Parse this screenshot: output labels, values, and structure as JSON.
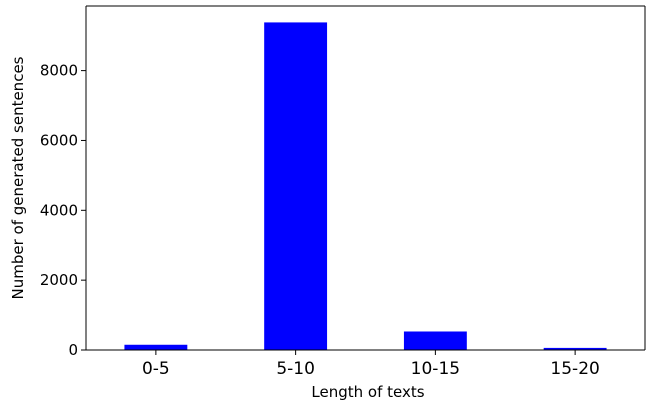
{
  "chart_data": {
    "type": "bar",
    "categories": [
      "0-5",
      "5-10",
      "10-15",
      "15-20"
    ],
    "values": [
      150,
      9380,
      530,
      60
    ],
    "title": "",
    "xlabel": "Length of texts",
    "ylabel": "Number of generated sentences",
    "ylim": [
      0,
      9850
    ],
    "yticks": [
      0,
      2000,
      4000,
      6000,
      8000
    ],
    "ytick_labels": [
      "0",
      "2000",
      "4000",
      "6000",
      "8000"
    ],
    "bar_color": "#0000ff",
    "grid": false,
    "legend": false
  }
}
